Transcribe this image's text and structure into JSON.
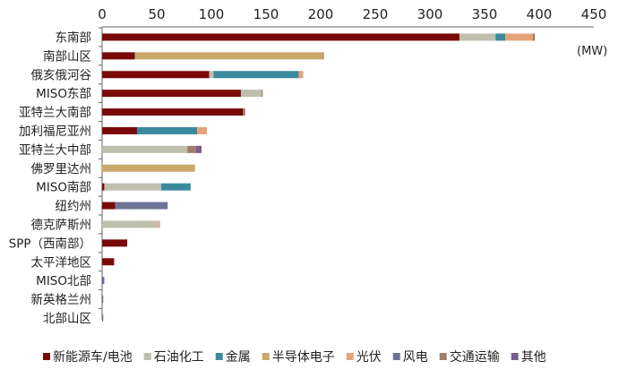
{
  "chart_data": {
    "type": "bar",
    "orientation": "horizontal",
    "stacked": true,
    "unit_label": "(MW)",
    "xlim": [
      0,
      450
    ],
    "x_ticks": [
      0,
      50,
      100,
      150,
      200,
      250,
      300,
      350,
      400,
      450
    ],
    "grid": false,
    "legend_position": "bottom",
    "categories": [
      "东南部",
      "南部山区",
      "俄亥俄河谷",
      "MISO东部",
      "亚特兰大南部",
      "加利福尼亚州",
      "亚特兰大中部",
      "佛罗里达州",
      "MISO南部",
      "纽约州",
      "德克萨斯州",
      "SPP（西南部）",
      "太平洋地区",
      "MISO北部",
      "新英格兰州",
      "北部山区"
    ],
    "series": [
      {
        "name": "新能源车/电池",
        "color": "#7a0a0a",
        "values": [
          327,
          30,
          98,
          127,
          129,
          32,
          0,
          0,
          2,
          12,
          0,
          23,
          11,
          0,
          0,
          0
        ]
      },
      {
        "name": "石油化工",
        "color": "#bfbfad",
        "values": [
          33,
          0,
          4,
          19,
          0,
          0,
          78,
          0,
          52,
          0,
          52,
          0,
          0,
          0,
          0,
          0
        ]
      },
      {
        "name": "金属",
        "color": "#3a8a9e",
        "values": [
          9,
          0,
          78,
          0,
          0,
          55,
          0,
          0,
          27,
          0,
          0,
          0,
          0,
          0,
          0,
          0
        ]
      },
      {
        "name": "半导体电子",
        "color": "#c9a86a",
        "values": [
          0,
          172,
          0,
          0,
          0,
          0,
          0,
          85,
          0,
          0,
          0,
          0,
          0,
          0,
          0,
          0
        ]
      },
      {
        "name": "光伏",
        "color": "#e5a37a",
        "values": [
          25,
          0,
          4,
          0,
          0,
          9,
          0,
          0,
          0,
          0,
          1,
          0,
          0,
          0,
          0,
          0
        ]
      },
      {
        "name": "风电",
        "color": "#6e7495",
        "values": [
          0,
          0,
          0,
          0,
          0,
          0,
          0,
          0,
          0,
          48,
          0,
          0,
          0,
          0,
          0,
          0
        ]
      },
      {
        "name": "交通运输",
        "color": "#9d7e68",
        "values": [
          2,
          1,
          0,
          1,
          2,
          0,
          8,
          0,
          0,
          0,
          0,
          0,
          0,
          0,
          0,
          0
        ]
      },
      {
        "name": "其他",
        "color": "#7b5c8e",
        "values": [
          0,
          0,
          0,
          0,
          0,
          0,
          5,
          0,
          0,
          0,
          0,
          0,
          0,
          2,
          1,
          1
        ]
      }
    ]
  }
}
